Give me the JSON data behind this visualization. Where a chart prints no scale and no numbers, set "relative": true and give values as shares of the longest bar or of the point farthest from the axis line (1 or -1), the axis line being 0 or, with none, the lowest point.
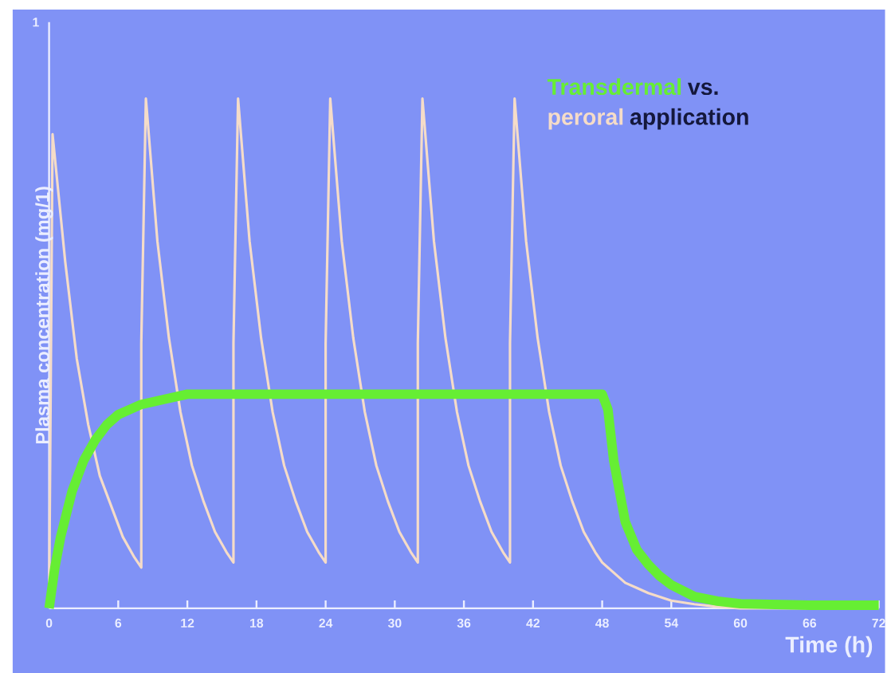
{
  "chart_data": {
    "type": "line",
    "xlabel": "Time (h)",
    "ylabel": "Plasma concentration (mg/1)",
    "annotations": [
      "vs.",
      "application",
      "1"
    ],
    "relative": true,
    "series": [
      {
        "name": "peroral",
        "color": "#f5dcc8",
        "x": [
          0,
          0.3,
          1.4,
          2.4,
          3.4,
          4.4,
          5.4,
          6.4,
          7.4,
          8,
          8,
          8.4,
          9.4,
          10.4,
          11.4,
          12.4,
          13.4,
          14.4,
          15.4,
          16,
          16,
          16.4,
          17.4,
          18.4,
          19.4,
          20.4,
          21.4,
          22.4,
          23.4,
          24,
          24,
          24.4,
          25.4,
          26.4,
          27.4,
          28.4,
          29.4,
          30.4,
          31.4,
          32,
          32,
          32.4,
          33.4,
          34.4,
          35.4,
          36.4,
          37.4,
          38.4,
          39.4,
          40,
          40,
          40.4,
          41.4,
          42.4,
          43.4,
          44.4,
          45.4,
          46.4,
          47.4,
          48,
          49,
          50,
          51,
          52,
          54,
          56,
          58,
          60,
          66,
          72
        ],
        "values": [
          0,
          0.93,
          0.68,
          0.49,
          0.36,
          0.26,
          0.2,
          0.14,
          0.1,
          0.08,
          0.52,
          1,
          0.72,
          0.53,
          0.385,
          0.28,
          0.21,
          0.15,
          0.11,
          0.09,
          0.52,
          1,
          0.72,
          0.53,
          0.385,
          0.28,
          0.21,
          0.15,
          0.11,
          0.09,
          0.52,
          1,
          0.72,
          0.53,
          0.385,
          0.28,
          0.21,
          0.15,
          0.11,
          0.09,
          0.52,
          1,
          0.72,
          0.53,
          0.385,
          0.28,
          0.21,
          0.15,
          0.11,
          0.09,
          0.52,
          1,
          0.72,
          0.53,
          0.385,
          0.28,
          0.21,
          0.15,
          0.11,
          0.09,
          0.07,
          0.05,
          0.04,
          0.03,
          0.015,
          0.008,
          0.003,
          0,
          0,
          0
        ]
      },
      {
        "name": "Transdermal",
        "color": "#66ee33",
        "x": [
          0,
          0.5,
          1,
          2,
          3,
          4,
          5,
          6,
          7,
          8,
          10,
          12,
          48,
          48.5,
          49,
          50,
          51,
          52,
          53,
          54,
          56,
          58,
          60,
          66,
          72
        ],
        "values": [
          0,
          0.08,
          0.14,
          0.23,
          0.29,
          0.33,
          0.36,
          0.38,
          0.39,
          0.4,
          0.41,
          0.42,
          0.42,
          0.39,
          0.29,
          0.17,
          0.115,
          0.086,
          0.063,
          0.046,
          0.023,
          0.014,
          0.009,
          0.006,
          0.006
        ]
      }
    ],
    "xlim": [
      0,
      72
    ],
    "xticks": [
      0,
      6,
      12,
      18,
      24,
      30,
      36,
      42,
      48,
      54,
      60,
      66,
      72
    ],
    "legend": "top right",
    "grid": false
  }
}
